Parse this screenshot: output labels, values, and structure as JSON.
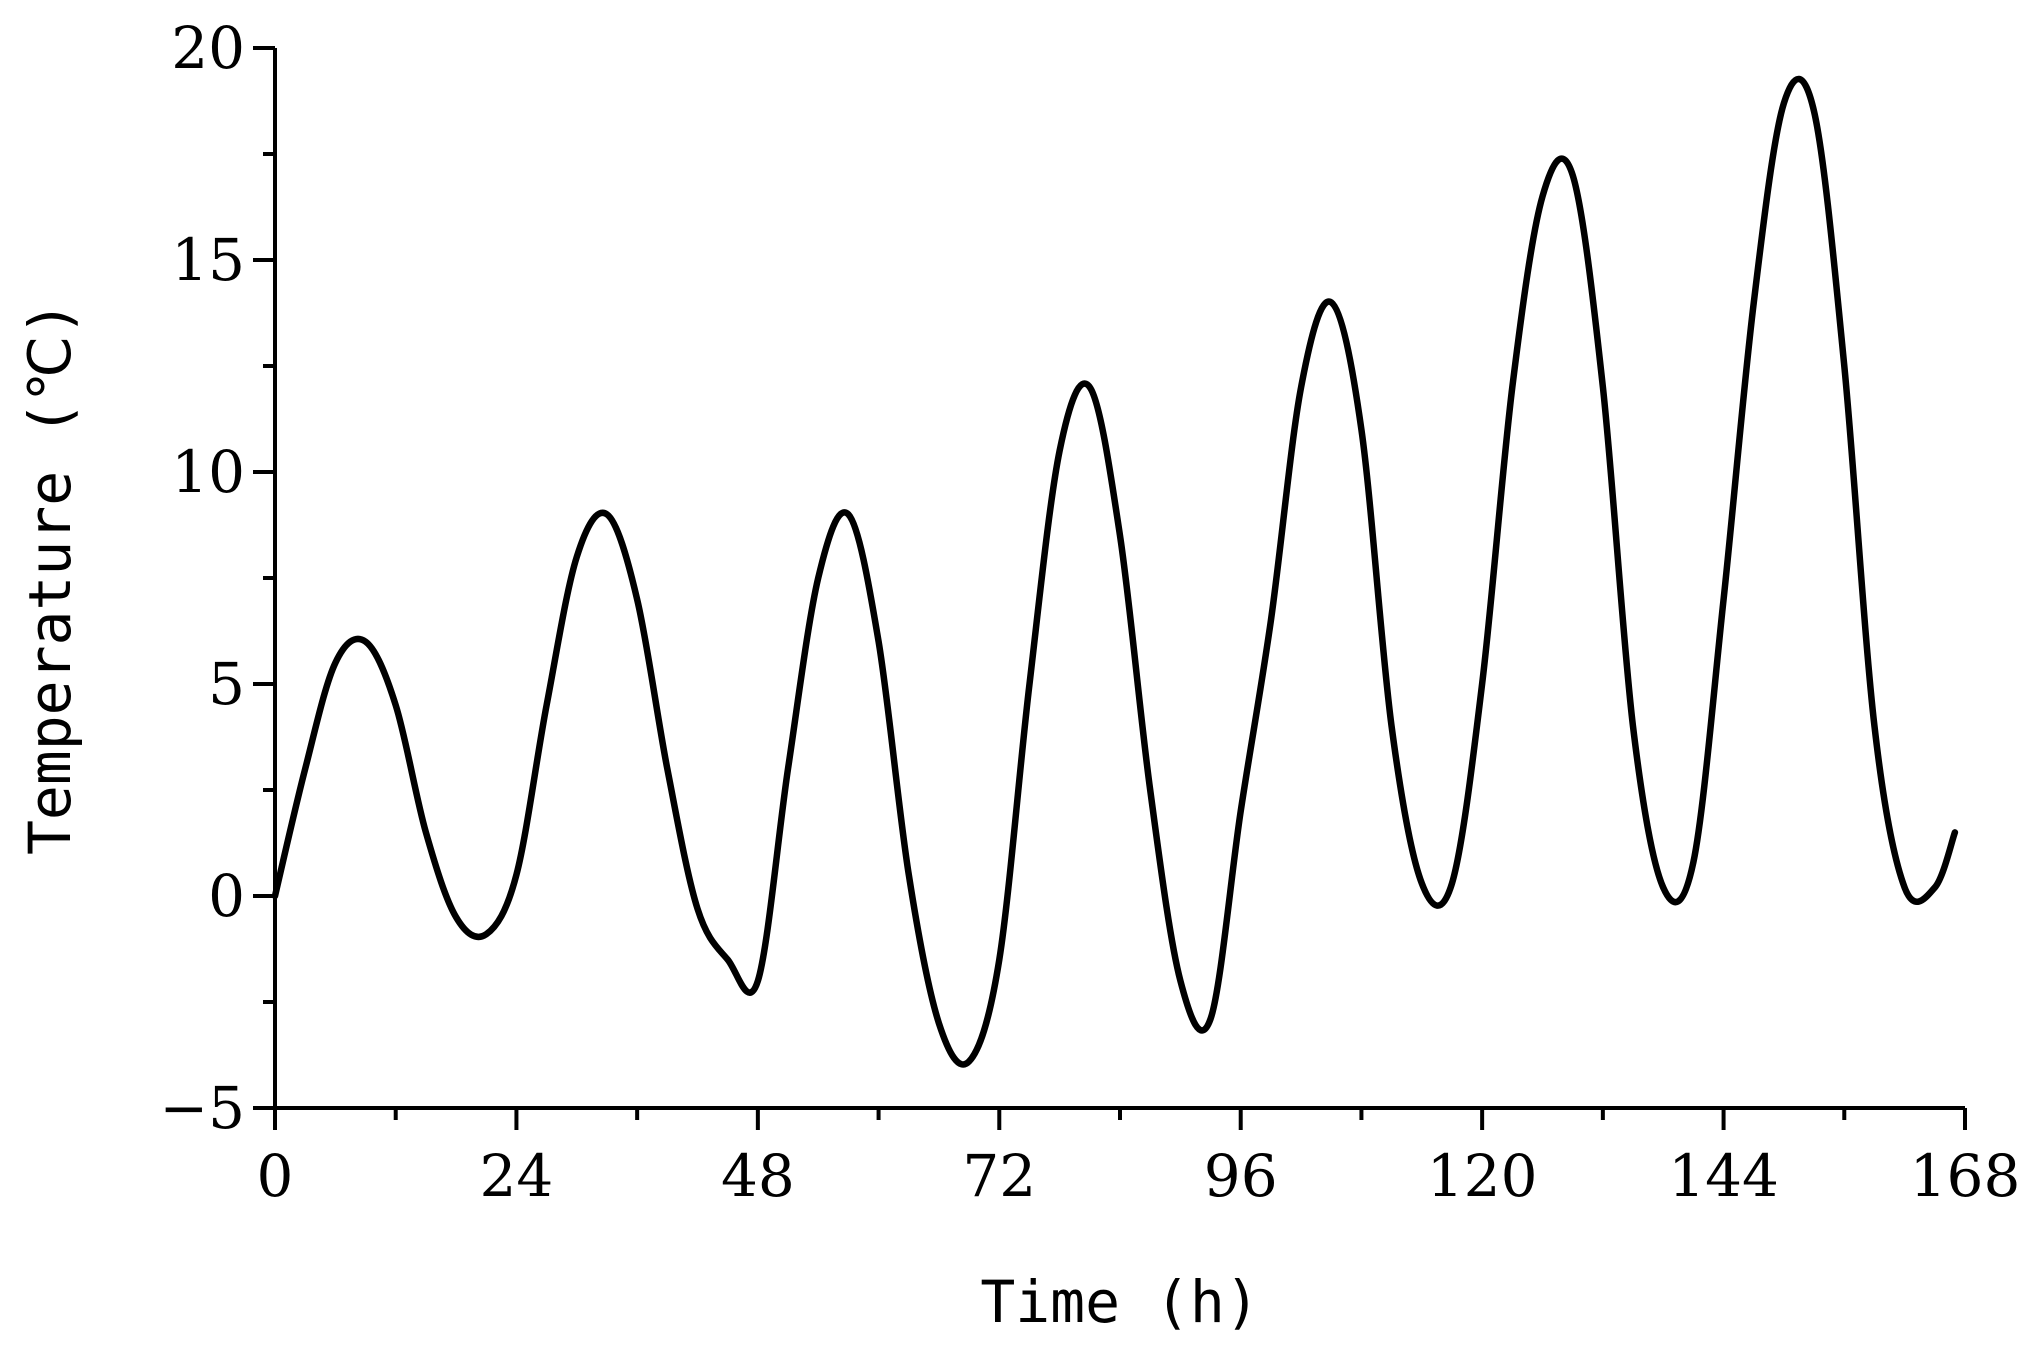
{
  "chart_data": {
    "type": "line",
    "title": "",
    "xlabel": "Time (h)",
    "ylabel": "Temperature (℃)",
    "xlim": [
      0,
      168
    ],
    "ylim": [
      -5,
      20
    ],
    "x_ticks": [
      0,
      24,
      48,
      72,
      96,
      120,
      144,
      168
    ],
    "x_tick_labels": [
      "0",
      "24",
      "48",
      "72",
      "96",
      "120",
      "144",
      "168"
    ],
    "y_ticks": [
      -5,
      0,
      5,
      10,
      15,
      20
    ],
    "y_tick_labels": [
      "−5",
      "0",
      "5",
      "10",
      "15",
      "20"
    ],
    "grid": false,
    "legend": "none",
    "series": [
      {
        "color": "#000000",
        "x": [
          0,
          3,
          6,
          9,
          12,
          15,
          18,
          21,
          24,
          27,
          30,
          33,
          36,
          39,
          42,
          45,
          48,
          51,
          54,
          57,
          60,
          63,
          66,
          69,
          72,
          75,
          78,
          81,
          84,
          87,
          90,
          93,
          96,
          99,
          102,
          105,
          108,
          111,
          114,
          117,
          120,
          123,
          126,
          129,
          132,
          135,
          138,
          141,
          144,
          147,
          150,
          153,
          156,
          159,
          162,
          165,
          167
        ],
        "y": [
          0,
          3,
          5.5,
          6,
          4.5,
          1.5,
          -0.5,
          -0.9,
          0.5,
          4.5,
          8,
          9,
          7,
          3,
          -0.3,
          -1.5,
          -2,
          3,
          7.5,
          9,
          6,
          0.5,
          -3,
          -3.9,
          -1.5,
          5,
          10.5,
          12,
          8.5,
          2.5,
          -2,
          -2.9,
          2,
          6.5,
          12,
          14,
          11,
          4,
          0.3,
          0.3,
          5,
          12,
          16.5,
          17,
          12,
          4,
          0.2,
          0.8,
          7,
          14,
          18.7,
          18.5,
          12.5,
          4,
          0.2,
          0.2,
          1.5
        ]
      }
    ]
  }
}
